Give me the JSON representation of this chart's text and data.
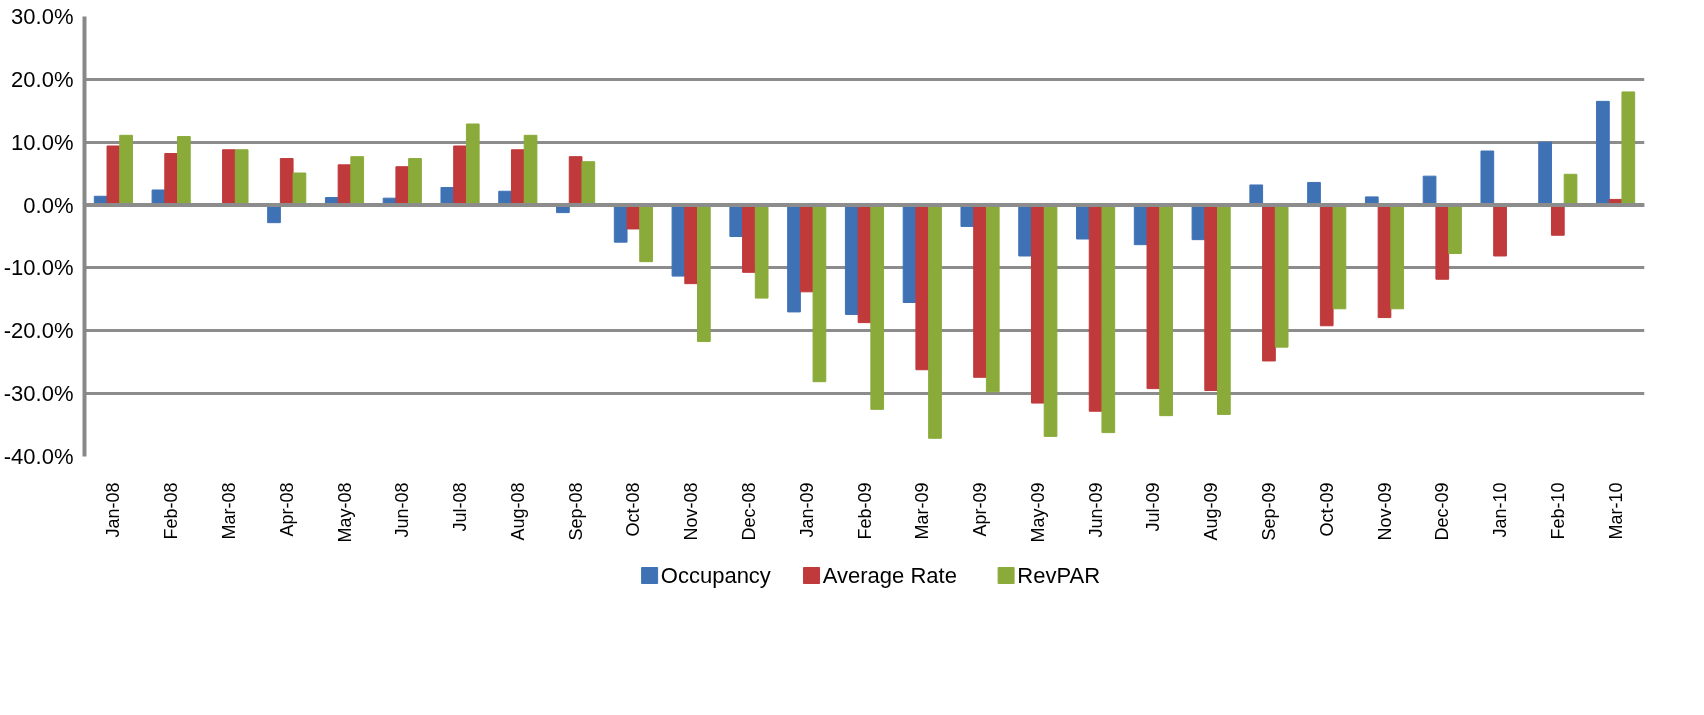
{
  "chart_data": {
    "type": "bar",
    "categories": [
      "Jan-08",
      "Feb-08",
      "Mar-08",
      "Apr-08",
      "May-08",
      "Jun-08",
      "Jul-08",
      "Aug-08",
      "Sep-08",
      "Oct-08",
      "Nov-08",
      "Dec-08",
      "Jan-09",
      "Feb-09",
      "Mar-09",
      "Apr-09",
      "May-09",
      "Jun-09",
      "Jul-09",
      "Aug-09",
      "Sep-09",
      "Oct-09",
      "Nov-09",
      "Dec-09",
      "Jan-10",
      "Feb-10",
      "Mar-10"
    ],
    "series": [
      {
        "name": "Occupancy",
        "color": "#3f72b5",
        "values": [
          1.4,
          2.4,
          0,
          -2.8,
          1.2,
          1.1,
          2.8,
          2.2,
          -1.2,
          -5.9,
          -11.3,
          -5.0,
          -17.0,
          -17.4,
          -15.5,
          -3.4,
          -8.1,
          -5.4,
          -6.3,
          -5.5,
          3.2,
          3.6,
          1.3,
          4.6,
          8.6,
          10.0,
          16.5
        ]
      },
      {
        "name": "Average Rate",
        "color": "#c0393b",
        "values": [
          9.4,
          8.2,
          8.8,
          7.4,
          6.4,
          6.1,
          9.4,
          8.8,
          7.7,
          -3.8,
          -12.5,
          -10.7,
          -13.8,
          -18.7,
          -26.2,
          -27.4,
          -31.5,
          -32.8,
          -29.2,
          -29.5,
          -24.8,
          -19.2,
          -17.9,
          -11.8,
          -8.1,
          -4.8,
          0.9
        ]
      },
      {
        "name": "RevPAR",
        "color": "#8aab3a",
        "values": [
          11.1,
          10.9,
          8.8,
          5.1,
          7.7,
          7.4,
          12.9,
          11.1,
          6.9,
          -9.0,
          -21.7,
          -14.8,
          -28.1,
          -32.5,
          -37.1,
          -29.7,
          -36.8,
          -36.2,
          -33.5,
          -33.3,
          -22.6,
          -16.5,
          -16.5,
          -7.7,
          0,
          4.9,
          18.0
        ]
      }
    ],
    "ylim": [
      -40,
      30
    ],
    "yticks": [
      {
        "value": -40,
        "label": "-40.0%"
      },
      {
        "value": -30,
        "label": "-30.0%"
      },
      {
        "value": -20,
        "label": "-20.0%"
      },
      {
        "value": -10,
        "label": "-10.0%"
      },
      {
        "value": 0,
        "label": "0.0%"
      },
      {
        "value": 10,
        "label": "10.0%"
      },
      {
        "value": 20,
        "label": "20.0%"
      },
      {
        "value": 30,
        "label": "30.0%"
      }
    ],
    "grid": "y",
    "legend": "bottom"
  }
}
